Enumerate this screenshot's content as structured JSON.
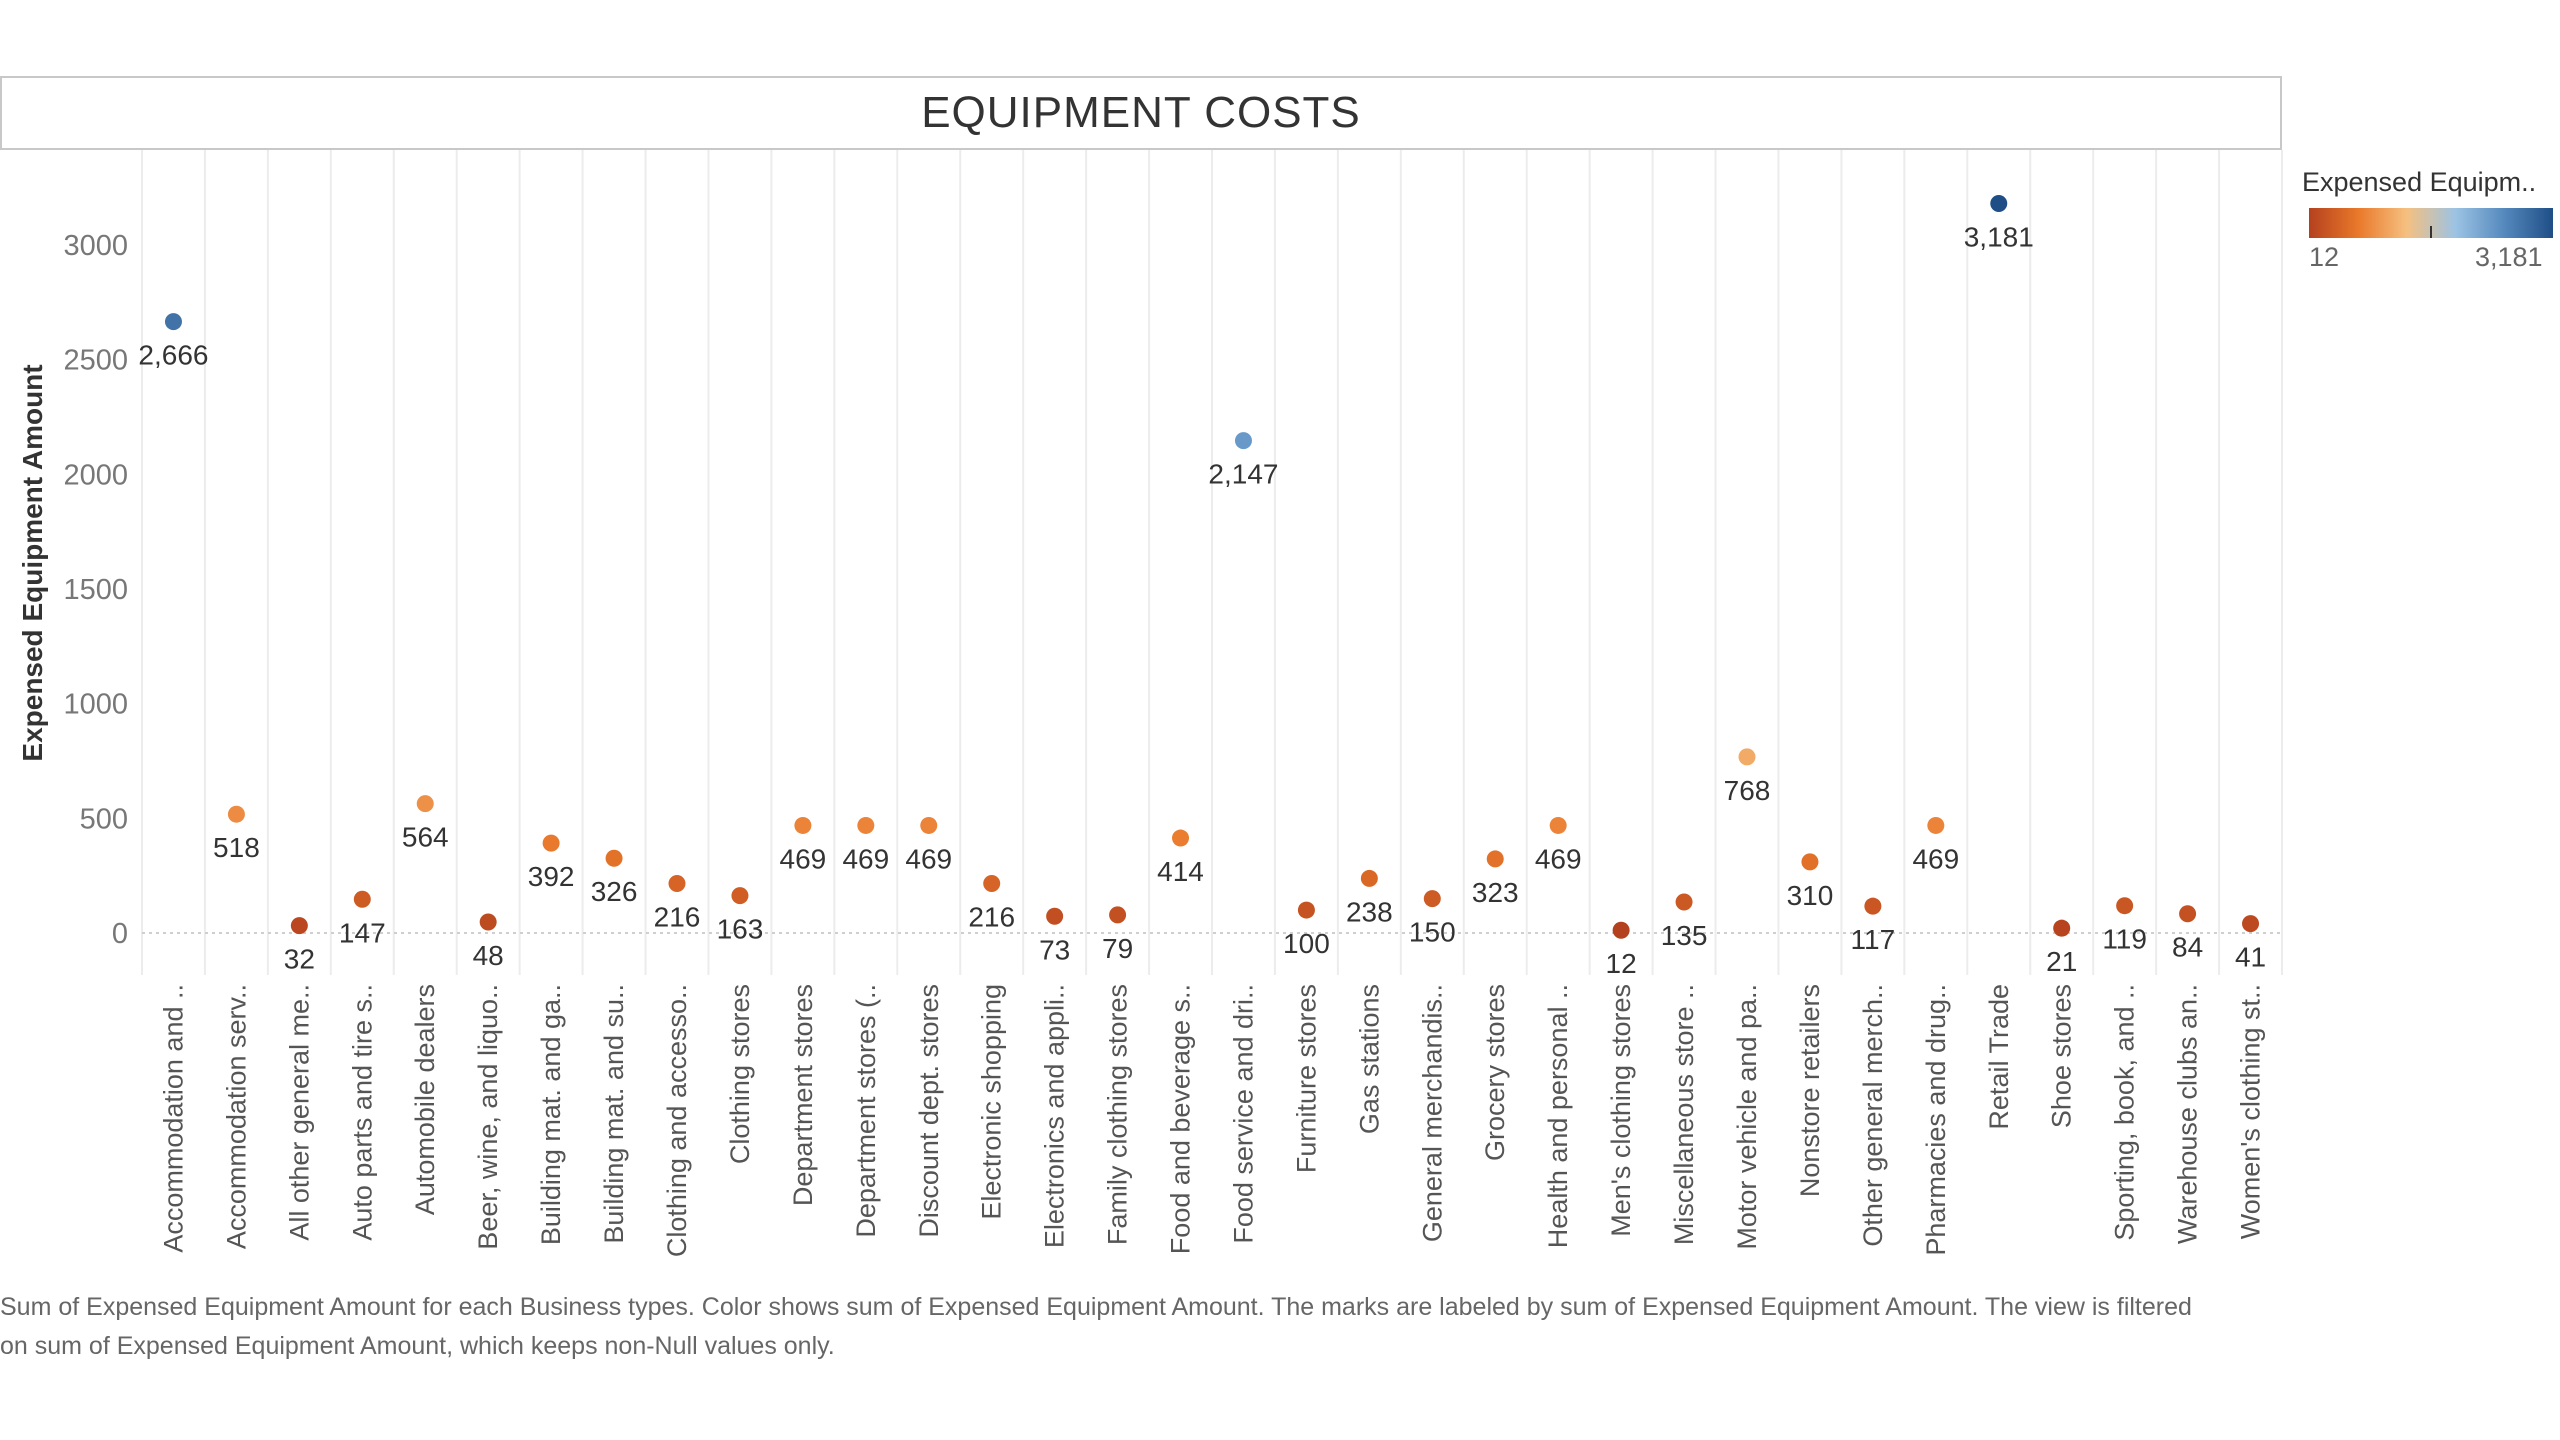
{
  "title": "EQUIPMENT COSTS",
  "legend": {
    "title": "Expensed Equipm..",
    "min_label": "12",
    "max_label": "3,181",
    "gradient_colors": [
      "#b4411e",
      "#e9782a",
      "#f5c080",
      "#9cc3e4",
      "#5589bd",
      "#1f4e86"
    ]
  },
  "footnote": "Sum of Expensed Equipment Amount for each Business types.  Color shows sum of Expensed Equipment Amount.  The marks are labeled by sum of Expensed Equipment Amount. The view is filtered on sum of Expensed Equipment Amount, which keeps non-Null values only.",
  "chart_data": {
    "type": "scatter",
    "title": "EQUIPMENT COSTS",
    "ylabel": "Expensed Equipment Amount",
    "xlabel": "",
    "ylim": [
      0,
      3250
    ],
    "yticks": [
      0,
      500,
      1000,
      1500,
      2000,
      2500,
      3000
    ],
    "grid": "vertical",
    "legend_position": "top-right",
    "categories": [
      "Accommodation and ..",
      "Accommodation serv..",
      "All other general me..",
      "Auto parts and tire s..",
      "Automobile dealers",
      "Beer, wine, and liquo..",
      "Building mat. and ga..",
      "Building mat. and su..",
      "Clothing and accesso..",
      "Clothing stores",
      "Department stores",
      "Department stores (..",
      "Discount dept. stores",
      "Electronic shopping",
      "Electronics and appli..",
      "Family clothing stores",
      "Food and beverage s..",
      "Food service and dri..",
      "Furniture stores",
      "Gas stations",
      "General merchandis..",
      "Grocery stores",
      "Health and personal ..",
      "Men's clothing stores",
      "Miscellaneous store ..",
      "Motor vehicle and pa..",
      "Nonstore retailers",
      "Other general merch..",
      "Pharmacies and drug..",
      "Retail Trade",
      "Shoe stores",
      "Sporting, book, and ..",
      "Warehouse clubs an..",
      "Women's clothing st.."
    ],
    "values": [
      2666,
      518,
      32,
      147,
      564,
      48,
      392,
      326,
      216,
      163,
      469,
      469,
      469,
      216,
      73,
      79,
      414,
      2147,
      100,
      238,
      150,
      323,
      469,
      12,
      135,
      768,
      310,
      117,
      469,
      3181,
      21,
      119,
      84,
      41
    ],
    "labels": [
      "2,666",
      "518",
      "32",
      "147",
      "564",
      "48",
      "392",
      "326",
      "216",
      "163",
      "469",
      "469",
      "469",
      "216",
      "73",
      "79",
      "414",
      "2,147",
      "100",
      "238",
      "150",
      "323",
      "469",
      "12",
      "135",
      "768",
      "310",
      "117",
      "469",
      "3,181",
      "21",
      "119",
      "84",
      "41"
    ],
    "color_range": [
      12,
      3181
    ]
  }
}
